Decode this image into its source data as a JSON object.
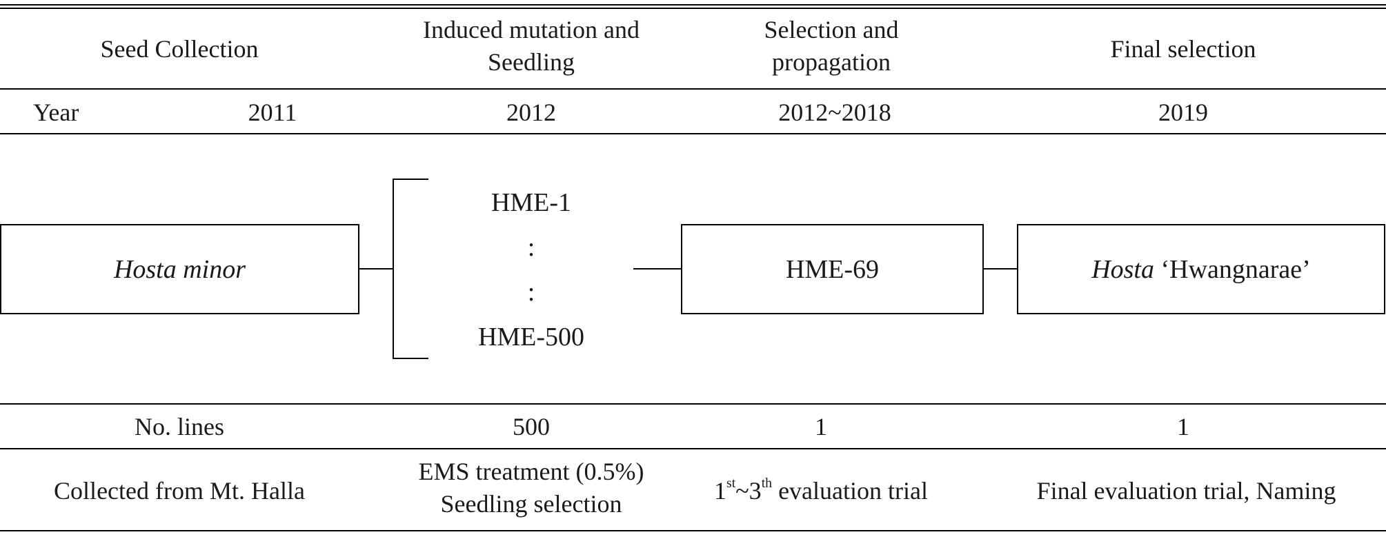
{
  "header": {
    "col1": "Seed Collection",
    "col2_line1": "Induced mutation and",
    "col2_line2": "Seedling",
    "col3_line1": "Selection and",
    "col3_line2": "propagation",
    "col4": "Final selection"
  },
  "year_row": {
    "label": "Year",
    "col1": "2011",
    "col2": "2012",
    "col3": "2012~2018",
    "col4": "2019"
  },
  "diagram": {
    "source_genus": "Hosta minor",
    "line_first": "HME-1",
    "dots": ":",
    "line_last": "HME-500",
    "selected_line": "HME-69",
    "final_genus": "Hosta",
    "final_cultivar": "‘Hwangnarae’"
  },
  "lines_row": {
    "label": "No. lines",
    "col2": "500",
    "col3": "1",
    "col4": "1"
  },
  "notes_row": {
    "col1": "Collected from Mt. Halla",
    "col2_line1": "EMS treatment (0.5%)",
    "col2_line2": "Seedling selection",
    "col3_a": "1",
    "col3_sup1": "st",
    "col3_b": "~3",
    "col3_sup2": "th",
    "col3_c": " evaluation trial",
    "col4": "Final evaluation trial, Naming"
  }
}
